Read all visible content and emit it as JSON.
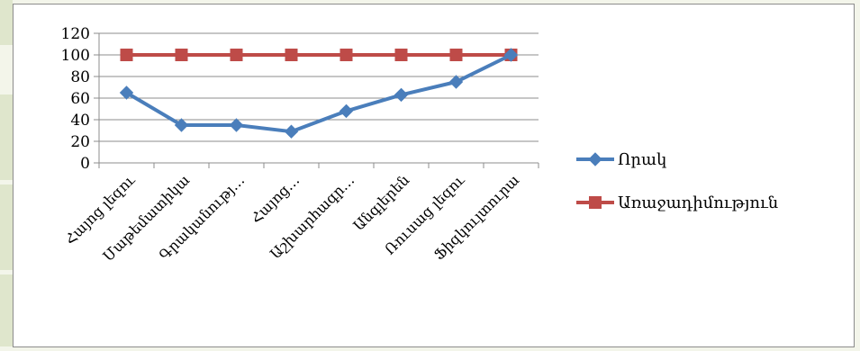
{
  "chart_data": {
    "type": "line",
    "categories": [
      "Հայոց լեզու",
      "Մաթեմատիկա",
      "Գրականությ…",
      "Հայոց…",
      "Աշխարհագր…",
      "Անգլերեն",
      "Ռուսաց լեզու",
      "Ֆիզկուլտուրա"
    ],
    "series": [
      {
        "name": "Որակ",
        "values": [
          65,
          35,
          35,
          29,
          48,
          63,
          75,
          100
        ],
        "color": "#4a7ebb",
        "marker": "diamond"
      },
      {
        "name": "Առաջադիմություն",
        "values": [
          100,
          100,
          100,
          100,
          100,
          100,
          100,
          100
        ],
        "color": "#be4b48",
        "marker": "square"
      }
    ],
    "yticks": [
      "0",
      "20",
      "40",
      "60",
      "80",
      "100",
      "120"
    ],
    "ylim": [
      0,
      120
    ],
    "grid": true,
    "legend_position": "right"
  },
  "colors": {
    "background_strip": "#dfe6cc",
    "gridline": "#8c8c8c"
  }
}
